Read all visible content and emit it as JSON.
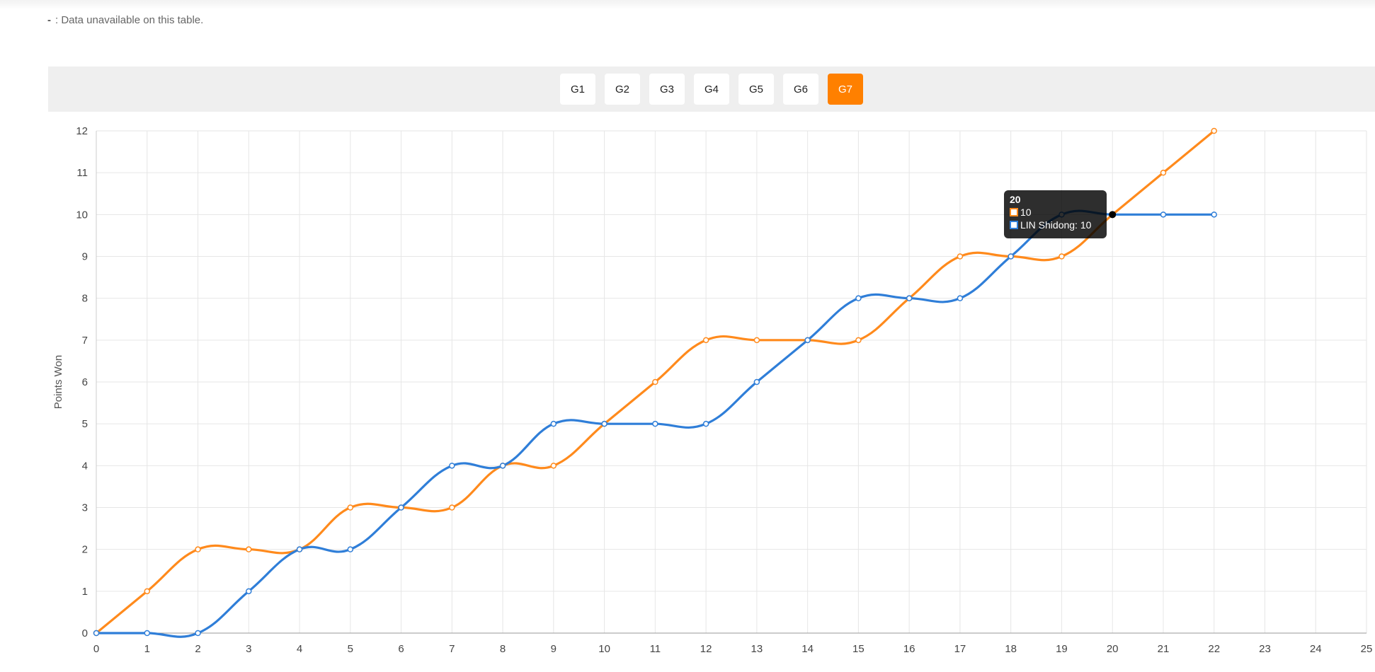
{
  "note": {
    "dash": "-",
    "text": ": Data unavailable on this table."
  },
  "games": {
    "buttons": [
      "G1",
      "G2",
      "G3",
      "G4",
      "G5",
      "G6",
      "G7"
    ],
    "active": "G7"
  },
  "tooltip": {
    "title": "20",
    "rows": [
      {
        "label": "10",
        "color": "#ff8a1c"
      },
      {
        "label": "LIN Shidong: 10",
        "color": "#2f7ed8"
      }
    ]
  },
  "chart_data": {
    "type": "line",
    "title": "",
    "xlabel": "",
    "ylabel": "Points Won",
    "xlim": [
      0,
      25
    ],
    "ylim": [
      0,
      12
    ],
    "grid": true,
    "x_ticks": [
      0,
      1,
      2,
      3,
      4,
      5,
      6,
      7,
      8,
      9,
      10,
      11,
      12,
      13,
      14,
      15,
      16,
      17,
      18,
      19,
      20,
      21,
      22,
      23,
      24,
      25
    ],
    "y_ticks": [
      0,
      1,
      2,
      3,
      4,
      5,
      6,
      7,
      8,
      9,
      10,
      11,
      12
    ],
    "x": [
      0,
      1,
      2,
      3,
      4,
      5,
      6,
      7,
      8,
      9,
      10,
      11,
      12,
      13,
      14,
      15,
      16,
      17,
      18,
      19,
      20,
      21,
      22
    ],
    "series": [
      {
        "color": "#ff8a1c",
        "values": [
          0,
          1,
          2,
          2,
          2,
          3,
          3,
          3,
          4,
          4,
          5,
          6,
          7,
          7,
          7,
          7,
          8,
          9,
          9,
          9,
          10,
          11,
          12
        ]
      },
      {
        "name": "LIN Shidong",
        "color": "#2f7ed8",
        "values": [
          0,
          0,
          0,
          1,
          2,
          2,
          3,
          4,
          4,
          5,
          5,
          5,
          5,
          6,
          7,
          8,
          8,
          8,
          9,
          10,
          10,
          10,
          10
        ]
      }
    ],
    "highlight_x": 20
  }
}
